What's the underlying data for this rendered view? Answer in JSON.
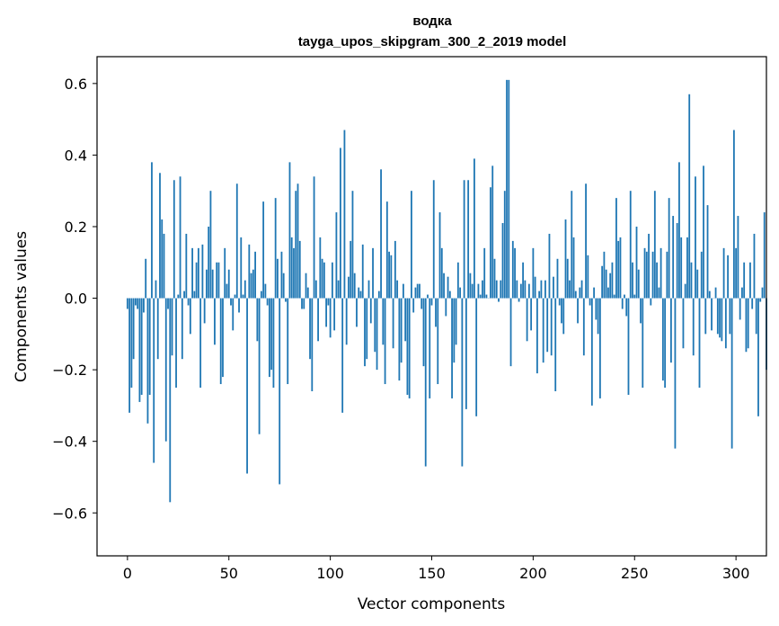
{
  "chart_data": {
    "type": "bar",
    "title_line1": "водка",
    "title_line2": "tayga_upos_skipgram_300_2_2019 model",
    "xlabel": "Vector components",
    "ylabel": "Components values",
    "xlim": [
      -15,
      315
    ],
    "ylim": [
      -0.72,
      0.675
    ],
    "xticks": [
      0,
      50,
      100,
      150,
      200,
      250,
      300
    ],
    "xtick_labels": [
      "0",
      "50",
      "100",
      "150",
      "200",
      "250",
      "300"
    ],
    "yticks": [
      -0.6,
      -0.4,
      -0.2,
      0.0,
      0.2,
      0.4,
      0.6
    ],
    "ytick_labels": [
      "−0.6",
      "−0.4",
      "−0.2",
      "0.0",
      "0.2",
      "0.4",
      "0.6"
    ],
    "bar_color": "#1f77b4",
    "values": [
      -0.03,
      -0.32,
      -0.25,
      -0.17,
      -0.02,
      -0.03,
      -0.29,
      -0.27,
      -0.04,
      0.11,
      -0.35,
      -0.27,
      0.38,
      -0.46,
      0.05,
      -0.17,
      0.35,
      0.22,
      0.18,
      -0.4,
      -0.03,
      -0.57,
      -0.16,
      0.33,
      -0.25,
      0.01,
      0.34,
      -0.17,
      0.02,
      0.18,
      -0.02,
      -0.1,
      0.14,
      0.02,
      0.1,
      0.14,
      -0.25,
      0.15,
      -0.07,
      0.08,
      0.2,
      0.3,
      0.08,
      -0.13,
      0.1,
      0.1,
      -0.24,
      -0.22,
      0.14,
      0.04,
      0.08,
      -0.02,
      -0.09,
      0.01,
      0.32,
      -0.04,
      0.17,
      0.01,
      0.05,
      -0.49,
      0.15,
      0.07,
      0.08,
      0.13,
      -0.12,
      -0.38,
      0.02,
      0.27,
      0.04,
      -0.02,
      -0.22,
      -0.2,
      -0.25,
      0.28,
      0.11,
      -0.52,
      0.13,
      0.07,
      -0.01,
      -0.24,
      0.38,
      0.17,
      0.14,
      0.3,
      0.32,
      0.16,
      -0.03,
      -0.03,
      0.07,
      0.03,
      -0.17,
      -0.26,
      0.34,
      0.05,
      -0.12,
      0.17,
      0.11,
      0.1,
      -0.08,
      -0.02,
      -0.11,
      0.1,
      -0.09,
      0.24,
      0.05,
      0.42,
      -0.32,
      0.47,
      -0.13,
      0.06,
      0.16,
      0.3,
      0.07,
      -0.08,
      0.03,
      0.02,
      0.15,
      -0.19,
      -0.17,
      0.05,
      -0.07,
      0.14,
      -0.15,
      -0.2,
      0.02,
      0.36,
      -0.13,
      -0.24,
      0.27,
      0.13,
      0.12,
      -0.14,
      0.16,
      0.05,
      -0.23,
      -0.18,
      0.04,
      -0.12,
      -0.27,
      -0.28,
      0.3,
      -0.04,
      0.03,
      0.04,
      0.04,
      -0.03,
      -0.19,
      -0.47,
      0.01,
      -0.28,
      -0.02,
      0.33,
      -0.08,
      -0.24,
      0.24,
      0.14,
      0.07,
      -0.05,
      0.06,
      0.02,
      -0.28,
      -0.18,
      -0.13,
      0.1,
      0.03,
      -0.47,
      0.33,
      -0.31,
      0.33,
      0.07,
      0.04,
      0.39,
      -0.33,
      0.04,
      0.01,
      0.05,
      0.14,
      0.01,
      0.0,
      0.31,
      0.37,
      0.11,
      0.05,
      -0.01,
      0.05,
      0.21,
      0.3,
      0.61,
      0.61,
      -0.19,
      0.16,
      0.14,
      0.05,
      -0.01,
      0.04,
      0.1,
      0.05,
      -0.12,
      0.04,
      -0.09,
      0.14,
      0.06,
      -0.21,
      0.02,
      0.05,
      -0.18,
      0.05,
      -0.15,
      0.18,
      -0.16,
      0.06,
      -0.26,
      0.11,
      -0.02,
      -0.07,
      -0.1,
      0.22,
      0.11,
      0.05,
      0.3,
      0.17,
      0.02,
      -0.07,
      0.03,
      0.05,
      -0.16,
      0.32,
      0.12,
      -0.02,
      -0.3,
      0.03,
      -0.06,
      -0.1,
      -0.28,
      0.09,
      0.13,
      0.08,
      0.03,
      0.07,
      0.1,
      0.01,
      0.28,
      0.16,
      0.17,
      -0.03,
      0.01,
      -0.05,
      -0.27,
      0.3,
      0.1,
      0.01,
      0.2,
      0.08,
      -0.07,
      -0.25,
      0.14,
      0.13,
      0.18,
      -0.02,
      0.13,
      0.3,
      0.1,
      0.03,
      0.14,
      -0.23,
      -0.25,
      0.13,
      0.28,
      -0.18,
      0.23,
      -0.42,
      0.21,
      0.38,
      0.17,
      -0.14,
      0.04,
      0.17,
      0.57,
      0.1,
      -0.16,
      0.34,
      0.08,
      -0.25,
      0.13,
      0.37,
      -0.1,
      0.26,
      0.02,
      -0.09,
      0.0,
      0.03,
      -0.1,
      -0.11,
      -0.12,
      0.14,
      -0.14,
      0.12,
      -0.1,
      -0.42,
      0.47,
      0.14,
      0.23,
      -0.06,
      0.03,
      0.1,
      -0.15,
      -0.14,
      0.1,
      -0.03,
      0.18,
      -0.1,
      -0.33,
      -0.01,
      0.03,
      0.24,
      -0.2
    ]
  }
}
